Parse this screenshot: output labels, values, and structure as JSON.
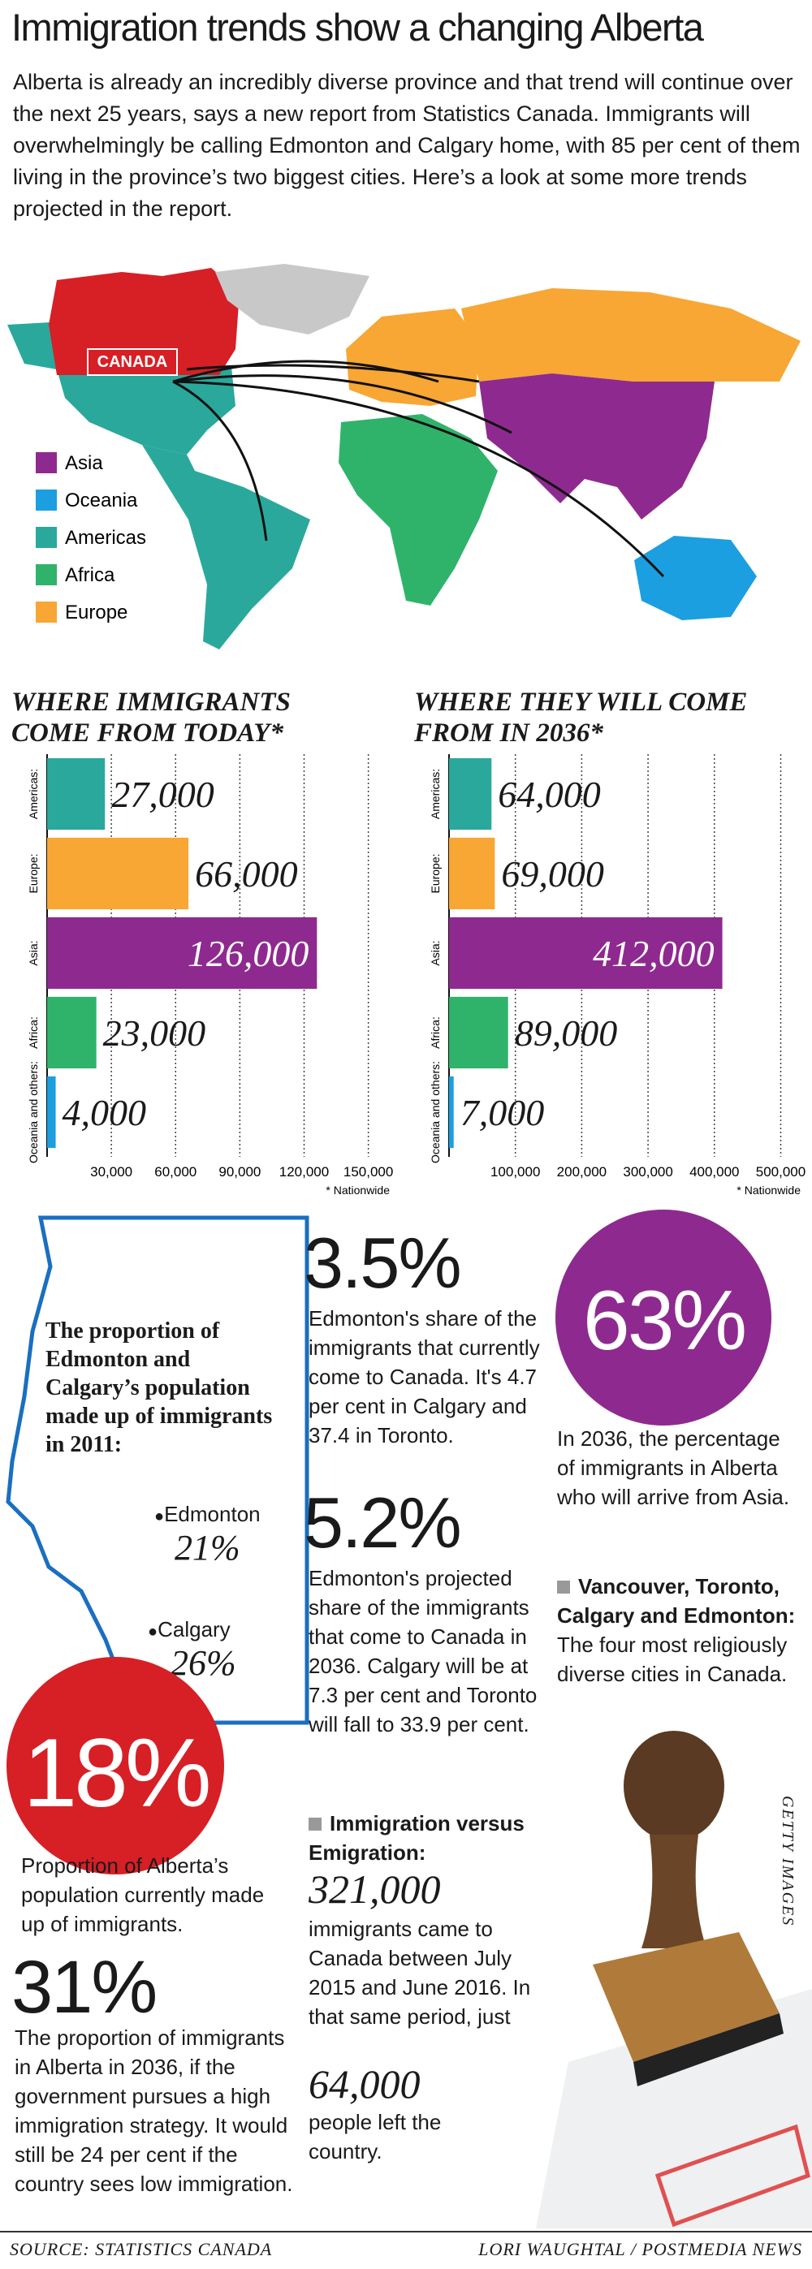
{
  "header": {
    "title": "Immigration trends show a changing Alberta",
    "intro": "Alberta is already an incredibly diverse province and that trend will continue over the next 25 years, says a new report from Statistics Canada. Immigrants will overwhelmingly be calling Edmonton and Calgary home, with 85 per cent of them living in the province’s two biggest cities. Here’s a look at some more trends projected in the report."
  },
  "map": {
    "label": "CANADA",
    "legend": [
      {
        "name": "Asia",
        "color": "#8e2a8f"
      },
      {
        "name": "Oceania",
        "color": "#1b9fe0"
      },
      {
        "name": "Americas",
        "color": "#2aa89c"
      },
      {
        "name": "Africa",
        "color": "#2fb36b"
      },
      {
        "name": "Europe",
        "color": "#f8a634"
      }
    ]
  },
  "chart_data": [
    {
      "type": "bar",
      "orientation": "horizontal",
      "title": "WHERE IMMIGRANTS COME FROM TODAY*",
      "categories": [
        "Americas:",
        "Europe:",
        "Asia:",
        "Africa:",
        "Oceania and others:"
      ],
      "values": [
        27000,
        66000,
        126000,
        23000,
        4000
      ],
      "value_labels": [
        "27,000",
        "66,000",
        "126,000",
        "23,000",
        "4,000"
      ],
      "colors": [
        "#2aa89c",
        "#f8a634",
        "#8e2a8f",
        "#2fb36b",
        "#1b9fe0"
      ],
      "xlim": [
        0,
        160000
      ],
      "xticks": [
        {
          "value": 30000,
          "label": "30,000"
        },
        {
          "value": 60000,
          "label": "60,000"
        },
        {
          "value": 90000,
          "label": "90,000"
        },
        {
          "value": 120000,
          "label": "120,000"
        },
        {
          "value": 150000,
          "label": "150,000"
        }
      ],
      "grid": true,
      "footnote": "* Nationwide"
    },
    {
      "type": "bar",
      "orientation": "horizontal",
      "title": "WHERE THEY WILL COME FROM IN 2036*",
      "categories": [
        "Americas:",
        "Europe:",
        "Asia:",
        "Africa:",
        "Oceania and others:"
      ],
      "values": [
        64000,
        69000,
        412000,
        89000,
        7000
      ],
      "value_labels": [
        "64,000",
        "69,000",
        "412,000",
        "89,000",
        "7,000"
      ],
      "colors": [
        "#2aa89c",
        "#f8a634",
        "#8e2a8f",
        "#2fb36b",
        "#1b9fe0"
      ],
      "xlim": [
        0,
        530000
      ],
      "xticks": [
        {
          "value": 100000,
          "label": "100,000"
        },
        {
          "value": 200000,
          "label": "200,000"
        },
        {
          "value": 300000,
          "label": "300,000"
        },
        {
          "value": 400000,
          "label": "400,000"
        },
        {
          "value": 500000,
          "label": "500,000"
        }
      ],
      "grid": true,
      "footnote": "* Nationwide"
    }
  ],
  "alberta": {
    "title": "The proportion of Edmonton and Calgary’s population made up of immigrants in 2011:",
    "cities": [
      {
        "name": "Edmonton",
        "value": "21%"
      },
      {
        "name": "Calgary",
        "value": "26%"
      }
    ]
  },
  "stats": {
    "current": {
      "value": "18%",
      "text": "Proportion of Alberta’s population currently made up of immigrants."
    },
    "future": {
      "value": "31%",
      "text": "The proportion of immigrants in Alberta in 2036, if the government pursues a high immigration strategy. It would still be 24 per cent if the country sees low immigration."
    },
    "edmonton_share": {
      "value": "3.5%",
      "text": "Edmonton's share of the immigrants that currently come to Canada. It's 4.7 per cent in Calgary and 37.4 in Toronto."
    },
    "projected_share": {
      "value": "5.2%",
      "text": "Edmonton's projected share of the immigrants that come to Canada in 2036. Calgary will be at 7.3 per cent and Toronto will fall to 33.9 per cent."
    },
    "asia": {
      "value": "63%",
      "text": "In 2036, the percentage of immigrants in Alberta who will arrive from Asia."
    },
    "diverse": {
      "heading": "Vancouver, Toronto, Calgary and Edmonton:",
      "text": "The four most religiously diverse cities in Canada."
    },
    "migration": {
      "heading": "Immigration versus Emigration:",
      "immigrants": "321,000",
      "immigrants_text": "immigrants came to Canada between July 2015 and June 2016. In that same period, just",
      "emigrants": "64,000",
      "emigrants_text": "people left the country."
    }
  },
  "credits": {
    "photo": "GETTY IMAGES",
    "source": "SOURCE: STATISTICS CANADA",
    "byline": "LORI WAUGHTAL / POSTMEDIA NEWS"
  }
}
